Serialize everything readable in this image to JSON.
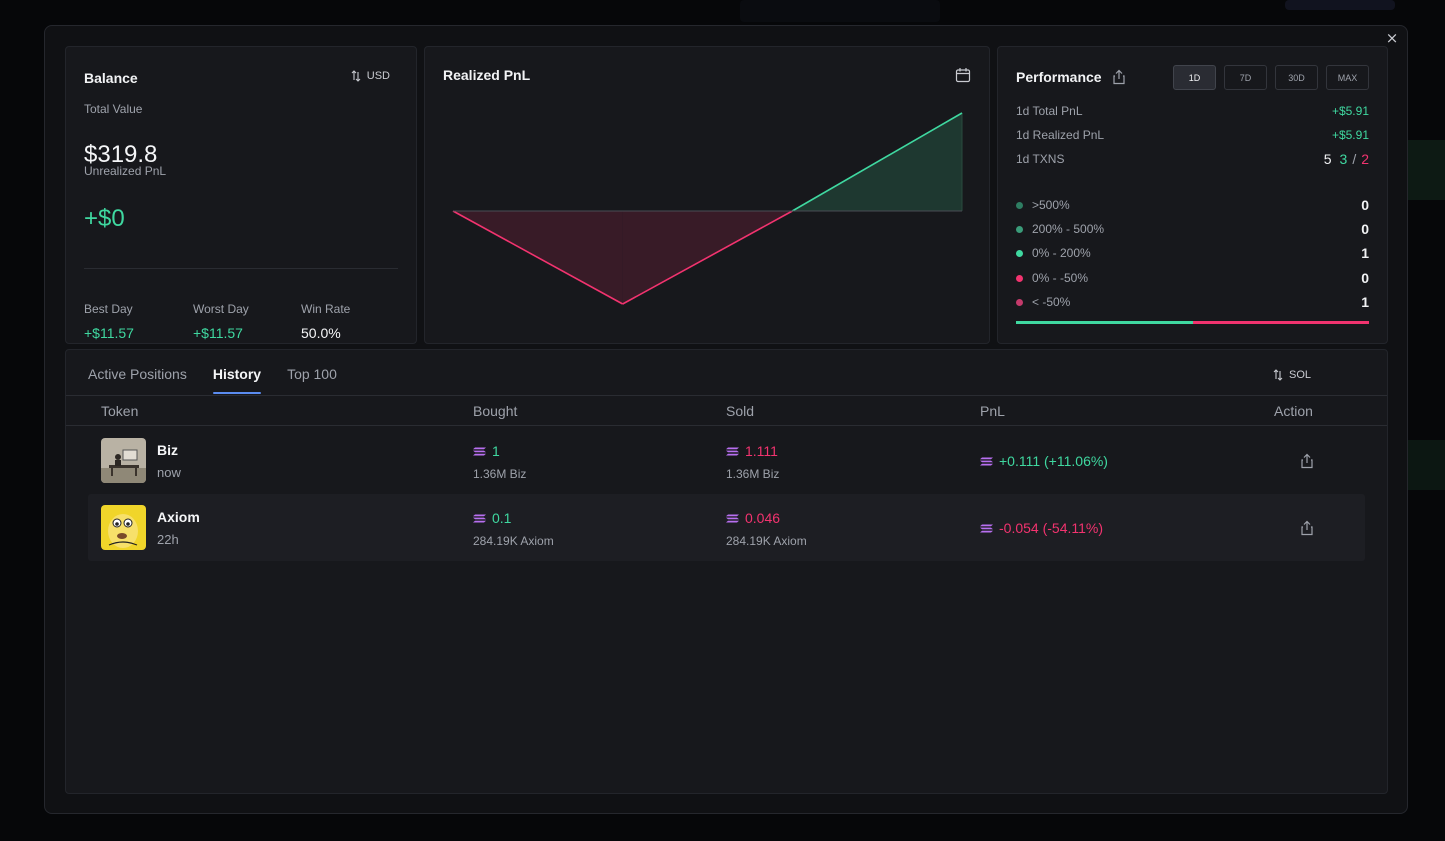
{
  "modal": {
    "close_label": "×"
  },
  "balance": {
    "title": "Balance",
    "currency_toggle": "USD",
    "total_value_label": "Total Value",
    "total_value": "$319.8",
    "unrealized_label": "Unrealized PnL",
    "unrealized_value": "+$0",
    "best_day_label": "Best Day",
    "best_day_value": "+$11.57",
    "worst_day_label": "Worst Day",
    "worst_day_value": "+$11.57",
    "win_rate_label": "Win Rate",
    "win_rate_value": "50.0%"
  },
  "realized_pnl": {
    "title": "Realized PnL",
    "icon": "calendar-icon"
  },
  "chart_data": {
    "type": "area",
    "title": "Realized PnL",
    "x": [
      0,
      1,
      2,
      3
    ],
    "values": [
      0,
      -5.6,
      0,
      5.91
    ],
    "baseline": 0,
    "colors": {
      "positive": "#3fd8a0",
      "negative": "#f2336f"
    },
    "grid": false,
    "legend": "none"
  },
  "performance": {
    "title": "Performance",
    "share_icon": "share-icon",
    "ranges": [
      "1D",
      "7D",
      "30D",
      "MAX"
    ],
    "active_range": "1D",
    "total_pnl_label": "1d Total PnL",
    "total_pnl_value": "+$5.91",
    "realized_pnl_label": "1d Realized PnL",
    "realized_pnl_value": "+$5.91",
    "txns_label": "1d TXNS",
    "txns_total": "5",
    "txns_buys": "3",
    "txns_sep": "/",
    "txns_sells": "2",
    "buckets": [
      {
        "label": ">500%",
        "count": "0",
        "color": "#2e7d62"
      },
      {
        "label": "200% - 500%",
        "count": "0",
        "color": "#3a9b79"
      },
      {
        "label": "0% - 200%",
        "count": "1",
        "color": "#3fd8a0"
      },
      {
        "label": "0% - -50%",
        "count": "0",
        "color": "#f2336f"
      },
      {
        "label": "< -50%",
        "count": "1",
        "color": "#c43a6b"
      }
    ],
    "win_fraction": 0.5
  },
  "positions": {
    "tabs": [
      "Active Positions",
      "History",
      "Top 100"
    ],
    "active_tab": "History",
    "currency_toggle": "SOL",
    "columns": [
      "Token",
      "Bought",
      "Sold",
      "PnL",
      "Action"
    ],
    "rows": [
      {
        "name": "Biz",
        "age": "now",
        "bought": "1",
        "bought_sub": "1.36M Biz",
        "sold": "1.111",
        "sold_sub": "1.36M Biz",
        "pnl": "+0.111 (+11.06%)"
      },
      {
        "name": "Axiom",
        "age": "22h",
        "bought": "0.1",
        "bought_sub": "284.19K Axiom",
        "sold": "0.046",
        "sold_sub": "284.19K Axiom",
        "pnl": "-0.054 (-54.11%)"
      }
    ]
  }
}
